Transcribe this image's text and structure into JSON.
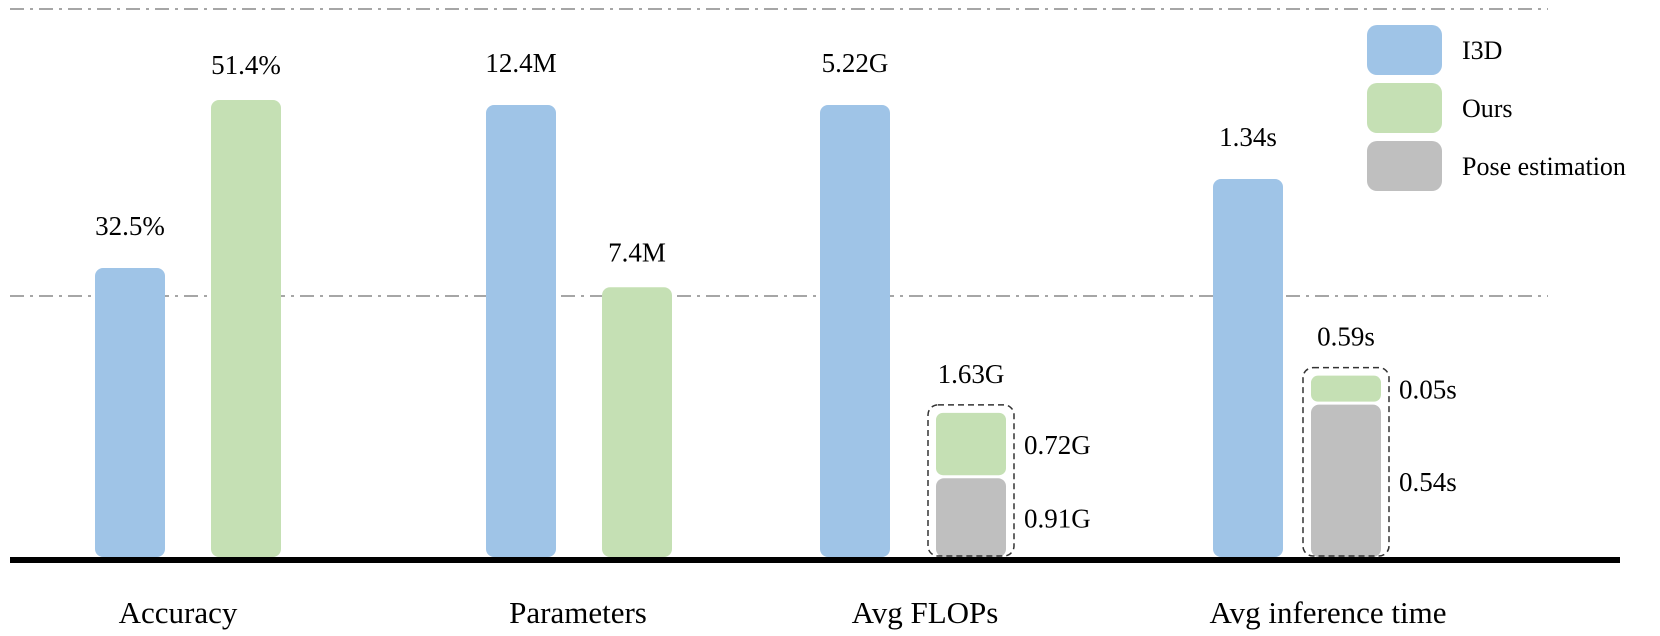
{
  "chart_data": {
    "type": "bar",
    "categories": [
      "Accuracy",
      "Parameters",
      "Avg FLOPs",
      "Avg inference time"
    ],
    "legend": {
      "position": "top-right",
      "entries": [
        {
          "name": "I3D",
          "color": "#9fc4e7"
        },
        {
          "name": "Ours",
          "color": "#c5e0b4"
        },
        {
          "name": "Pose estimation",
          "color": "#bfbfbf"
        }
      ]
    },
    "series": [
      {
        "name": "I3D",
        "values": [
          32.5,
          12.4,
          5.22,
          1.34
        ],
        "labels": [
          "32.5%",
          "12.4M",
          "5.22G",
          "1.34s"
        ]
      },
      {
        "name": "Ours",
        "values": [
          51.4,
          7.4,
          0.72,
          0.05
        ],
        "labels": [
          "51.4%",
          "7.4M",
          "0.72G",
          "0.05s"
        ]
      },
      {
        "name": "Pose estimation",
        "values": [
          null,
          null,
          0.91,
          0.54
        ],
        "labels": [
          null,
          null,
          "0.91G",
          "0.54s"
        ]
      }
    ],
    "stack_totals": {
      "Avg FLOPs": "1.63G",
      "Avg inference time": "0.59s"
    },
    "grid": true
  }
}
